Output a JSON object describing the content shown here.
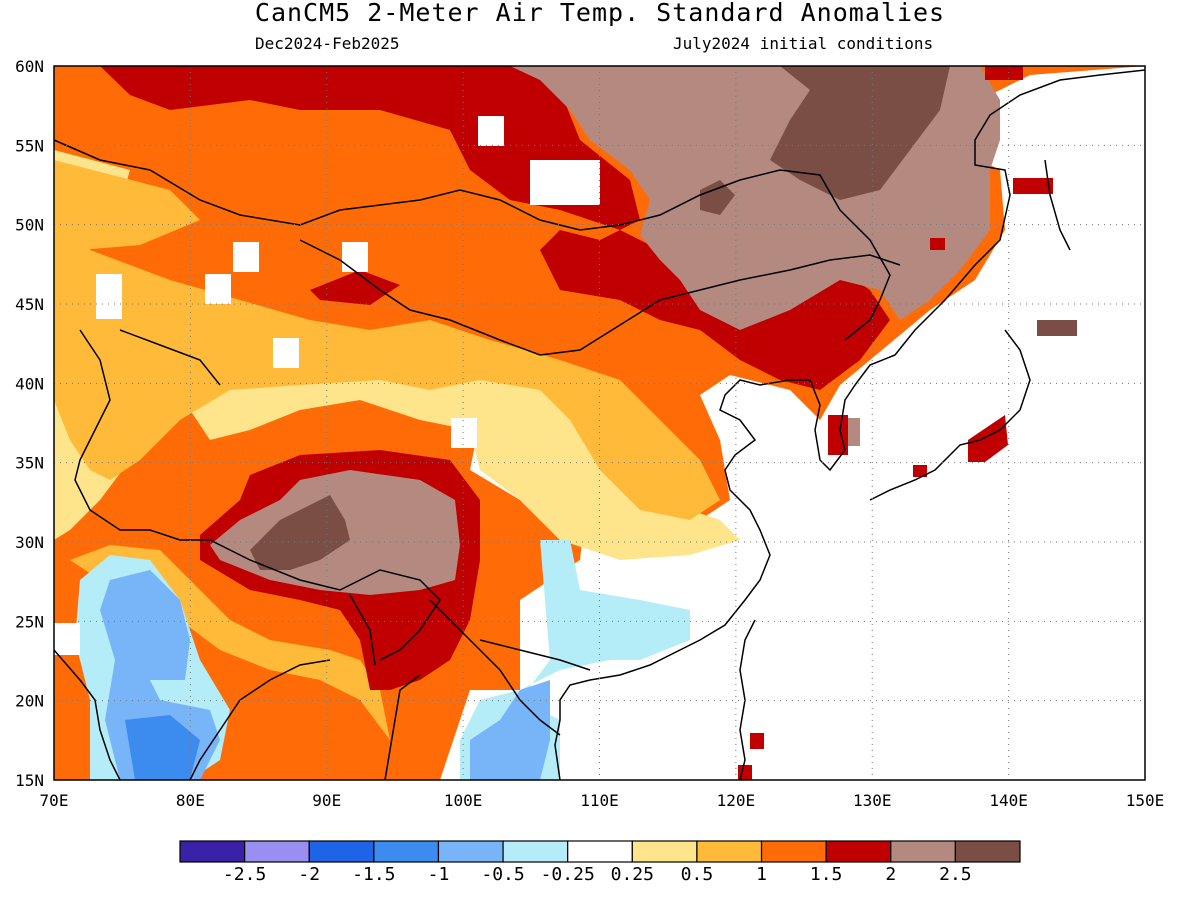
{
  "title": "CanCM5 2-Meter Air Temp. Standard Anomalies",
  "subtitle_left": "Dec2024-Feb2025",
  "subtitle_right": "July2024 initial conditions",
  "map": {
    "lon_range": [
      70,
      150
    ],
    "lat_range": [
      15,
      60
    ],
    "lon_ticks": [
      "70E",
      "80E",
      "90E",
      "100E",
      "110E",
      "120E",
      "130E",
      "140E",
      "150E"
    ],
    "lat_ticks": [
      "15N",
      "20N",
      "25N",
      "30N",
      "35N",
      "40N",
      "45N",
      "50N",
      "55N",
      "60N"
    ],
    "grid": "dotted"
  },
  "legend": {
    "colors": [
      "#3a22a8",
      "#9a8ef0",
      "#1e64e6",
      "#3c8cf0",
      "#78b4f8",
      "#b4ecf8",
      "#ffffff",
      "#fee48a",
      "#ffba3a",
      "#ff6b06",
      "#c00000",
      "#b48a80",
      "#7a4e44"
    ],
    "labels": [
      "-2.5",
      "-2",
      "-1.5",
      "-1",
      "-0.5",
      "-0.25",
      "0.25",
      "0.5",
      "1",
      "1.5",
      "2",
      "2.5"
    ]
  }
}
